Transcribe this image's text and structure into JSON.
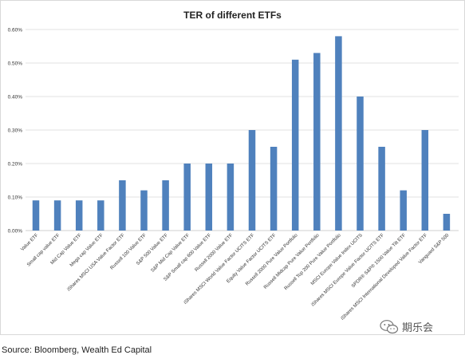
{
  "chart_data": {
    "type": "bar",
    "title": "TER of different ETFs",
    "xlabel": "",
    "ylabel": "",
    "ylim": [
      0,
      0.6
    ],
    "yticks": [
      "0.00%",
      "0.10%",
      "0.20%",
      "0.30%",
      "0.40%",
      "0.50%",
      "0.60%"
    ],
    "grid": true,
    "bar_color": "#4f81bd",
    "categories": [
      "Value ETF",
      "Small cap value ETF",
      "Mid Cap Value ETF",
      "Mega cap Value ETF",
      "iShares MSCI USA Value Factor ETF",
      "Russell 100 Value ETF",
      "S&P 500 Value ETF",
      "S&P Mid Cap Value ETF",
      "S&P Small cap 600 Value ETF",
      "Russell 2000 Value ETF",
      "iShares MSCI World Value Factor UCITS ETF",
      "Equity Value Factor UCITS ETF",
      "Russell 2000 Pure Value Portfolio",
      "Russell Midcap Pure Value Portfolio",
      "Russell Top 200 Pure Value Portfolio",
      "MSCI Europe Value Index UCITS",
      "iShares MSCI Europe Value Factor UCITS ETF",
      "SPDR® S&P® 1500 Value Tilt ETF",
      "iShares MSCI International Developed Value Factor ETF",
      "Vanguard S&P 500"
    ],
    "values": [
      0.09,
      0.09,
      0.09,
      0.09,
      0.15,
      0.12,
      0.15,
      0.2,
      0.2,
      0.2,
      0.3,
      0.25,
      0.51,
      0.53,
      0.58,
      0.4,
      0.25,
      0.12,
      0.3,
      0.05
    ]
  },
  "watermark": {
    "icon": "wechat-icon",
    "text": "期乐会"
  },
  "source": "Source: Bloomberg, Wealth Ed Capital"
}
